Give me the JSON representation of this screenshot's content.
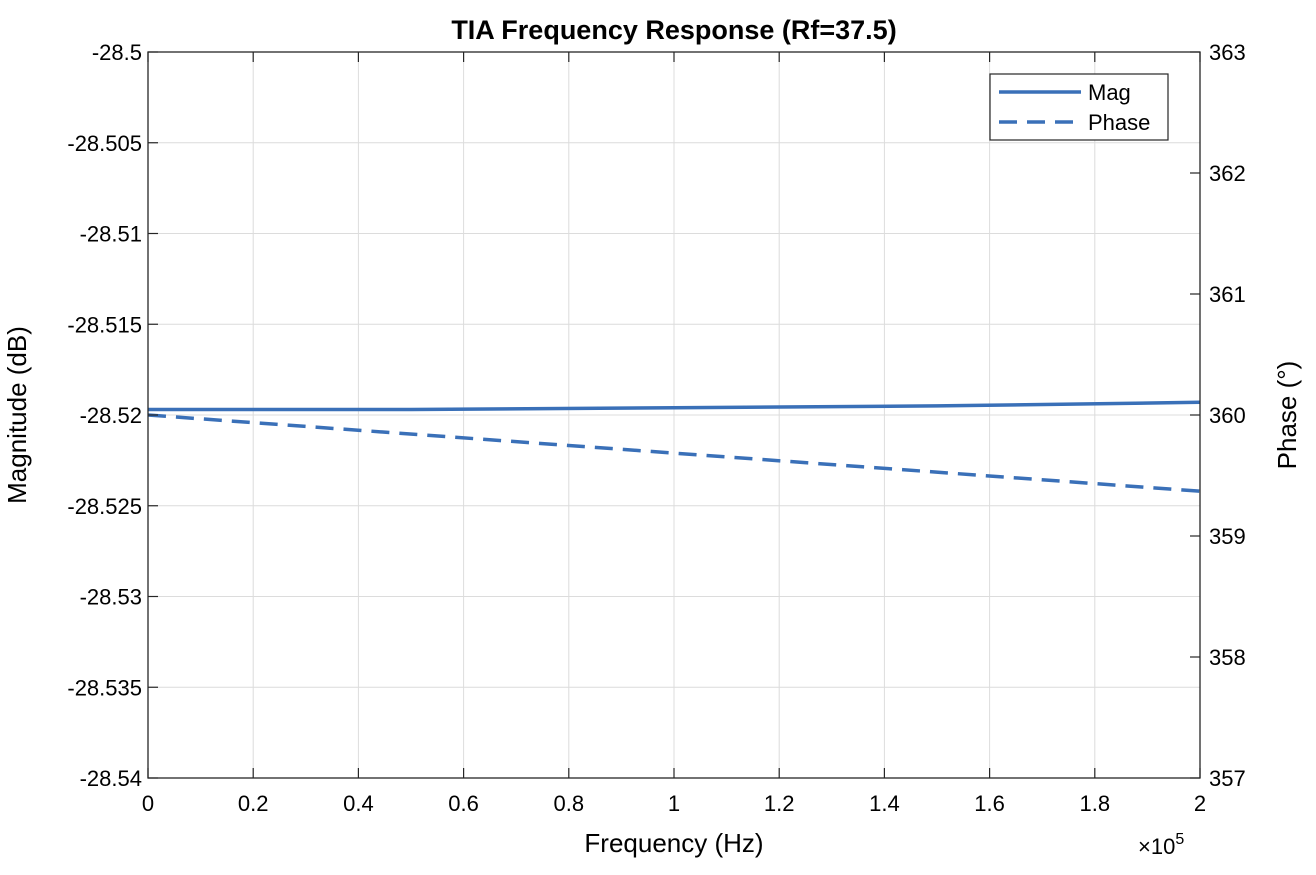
{
  "chart_data": {
    "type": "line",
    "title": "TIA Frequency Response (Rf=37.5)",
    "xlabel": "Frequency (Hz)",
    "ylabel_left": "Magnitude (dB)",
    "ylabel_right": "Phase (°)",
    "x_multiplier": "×10",
    "x_multiplier_exp": "5",
    "xlim": [
      0,
      2
    ],
    "ylim_left": [
      -28.54,
      -28.5
    ],
    "ylim_right": [
      357,
      363
    ],
    "x_ticks": [
      "0",
      "0.2",
      "0.4",
      "0.6",
      "0.8",
      "1",
      "1.2",
      "1.4",
      "1.6",
      "1.8",
      "2"
    ],
    "y_left_ticks": [
      "-28.5",
      "-28.505",
      "-28.51",
      "-28.515",
      "-28.52",
      "-28.525",
      "-28.53",
      "-28.535",
      "-28.54"
    ],
    "y_right_ticks": [
      "363",
      "362",
      "361",
      "360",
      "359",
      "358",
      "357"
    ],
    "grid": true,
    "legend_position": "top-right",
    "series": [
      {
        "name": "Mag",
        "axis": "left",
        "style": "solid",
        "color": "#3a70b8",
        "x": [
          0,
          0.5,
          1.0,
          1.5,
          2.0
        ],
        "y": [
          -28.5197,
          -28.5197,
          -28.5196,
          -28.5195,
          -28.5193
        ]
      },
      {
        "name": "Phase",
        "axis": "right",
        "style": "dashed",
        "color": "#3a70b8",
        "x": [
          0,
          2.0
        ],
        "y": [
          360.0,
          359.37
        ]
      }
    ]
  }
}
